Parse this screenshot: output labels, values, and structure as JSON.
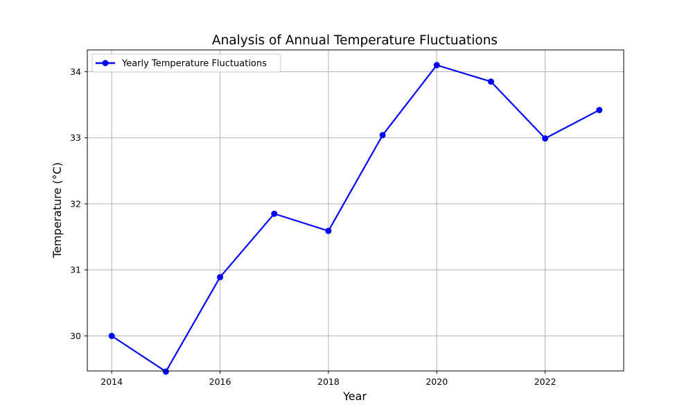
{
  "chart_data": {
    "type": "line",
    "title": "Analysis of Annual Temperature Fluctuations",
    "xlabel": "Year",
    "ylabel": "Temperature (°C)",
    "x": [
      2014,
      2015,
      2016,
      2017,
      2018,
      2019,
      2020,
      2021,
      2022,
      2023
    ],
    "xlim": [
      2013.55,
      2023.45
    ],
    "ylim": [
      29.47,
      34.33
    ],
    "xticks": [
      2014,
      2016,
      2018,
      2020,
      2022
    ],
    "yticks": [
      30,
      31,
      32,
      33,
      34
    ],
    "grid": true,
    "legend_position": "top-left",
    "series": [
      {
        "name": "Yearly Temperature Fluctuations",
        "color": "#0000ff",
        "marker": "circle",
        "values": [
          30.0,
          29.46,
          30.89,
          31.85,
          31.59,
          33.04,
          34.1,
          33.85,
          32.99,
          33.42
        ]
      }
    ]
  }
}
